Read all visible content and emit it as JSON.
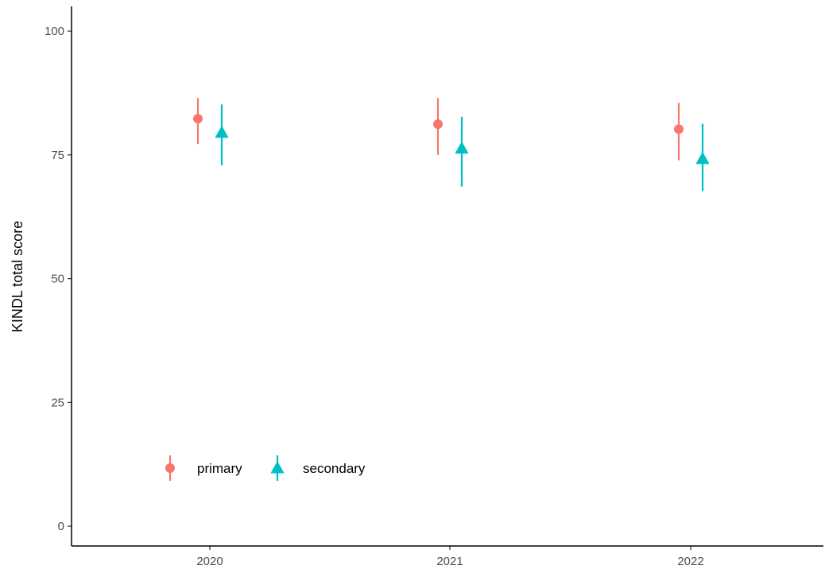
{
  "chart_data": {
    "type": "scatter",
    "title": "",
    "xlabel": "",
    "ylabel": "KINDL total score",
    "categories": [
      "2020",
      "2021",
      "2022"
    ],
    "ylim": [
      -4,
      105
    ],
    "yticks": [
      0,
      25,
      50,
      75,
      100
    ],
    "grid": false,
    "legend_position": "bottom-left",
    "series": [
      {
        "name": "primary",
        "color": "#F8766D",
        "marker": "circle",
        "values": [
          82.3,
          81.2,
          80.2
        ],
        "lower": [
          77.2,
          75.0,
          73.9
        ],
        "upper": [
          86.5,
          86.5,
          85.5
        ]
      },
      {
        "name": "secondary",
        "color": "#00BFC4",
        "marker": "triangle",
        "values": [
          79.5,
          76.3,
          74.2
        ],
        "lower": [
          72.9,
          68.6,
          67.7
        ],
        "upper": [
          85.2,
          82.7,
          81.3
        ]
      }
    ]
  }
}
